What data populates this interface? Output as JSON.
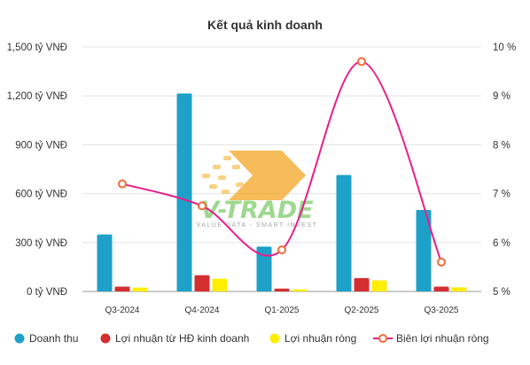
{
  "chart_data": {
    "type": "bar",
    "title": "Kết quả kinh doanh",
    "categories": [
      "Q3-2024",
      "Q4-2024",
      "Q1-2025",
      "Q2-2025",
      "Q3-2025"
    ],
    "y_left": {
      "range": [
        0,
        1500
      ],
      "ticks": [
        0,
        300,
        600,
        900,
        1200,
        1500
      ],
      "tick_labels": [
        "0 tỷ VNĐ",
        "300 tỷ VNĐ",
        "600 tỷ VNĐ",
        "900 tỷ VNĐ",
        "1,200 tỷ VNĐ",
        "1,500 tỷ VNĐ"
      ]
    },
    "y_right": {
      "range": [
        5,
        10
      ],
      "ticks": [
        5,
        6,
        7,
        8,
        9,
        10
      ],
      "tick_labels": [
        "5 %",
        "6 %",
        "7 %",
        "8 %",
        "9 %",
        "10 %"
      ]
    },
    "series": [
      {
        "name": "Doanh thu",
        "type": "bar",
        "axis": "left",
        "color": "#1da1c9",
        "values": [
          350,
          1215,
          275,
          715,
          500
        ]
      },
      {
        "name": "Lợi nhuận từ HĐ kinh doanh",
        "type": "bar",
        "axis": "left",
        "color": "#d32f2f",
        "values": [
          30,
          100,
          18,
          82,
          30
        ]
      },
      {
        "name": "Lợi nhuận ròng",
        "type": "bar",
        "axis": "left",
        "color": "#ffee00",
        "values": [
          24,
          78,
          13,
          68,
          25
        ]
      },
      {
        "name": "Biên lợi nhuận ròng",
        "type": "line",
        "axis": "right",
        "color": "#e91e8c",
        "marker_color": "#f26b3a",
        "values": [
          7.2,
          6.75,
          5.85,
          9.7,
          5.6
        ]
      }
    ],
    "grid": true,
    "legend_position": "bottom"
  },
  "watermark": {
    "brand": "V-TRADE",
    "tagline": "VALUE DATA - SMART INVEST"
  }
}
